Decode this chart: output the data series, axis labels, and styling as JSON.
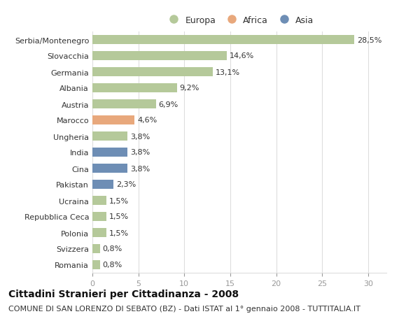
{
  "categories": [
    "Romania",
    "Svizzera",
    "Polonia",
    "Repubblica Ceca",
    "Ucraina",
    "Pakistan",
    "Cina",
    "India",
    "Ungheria",
    "Marocco",
    "Austria",
    "Albania",
    "Germania",
    "Slovacchia",
    "Serbia/Montenegro"
  ],
  "values": [
    0.8,
    0.8,
    1.5,
    1.5,
    1.5,
    2.3,
    3.8,
    3.8,
    3.8,
    4.6,
    6.9,
    9.2,
    13.1,
    14.6,
    28.5
  ],
  "labels": [
    "0,8%",
    "0,8%",
    "1,5%",
    "1,5%",
    "1,5%",
    "2,3%",
    "3,8%",
    "3,8%",
    "3,8%",
    "4,6%",
    "6,9%",
    "9,2%",
    "13,1%",
    "14,6%",
    "28,5%"
  ],
  "colors": [
    "#b5c99a",
    "#b5c99a",
    "#b5c99a",
    "#b5c99a",
    "#b5c99a",
    "#6e8eb5",
    "#6e8eb5",
    "#6e8eb5",
    "#b5c99a",
    "#e8a87c",
    "#b5c99a",
    "#b5c99a",
    "#b5c99a",
    "#b5c99a",
    "#b5c99a"
  ],
  "continent_colors": {
    "Europa": "#b5c99a",
    "Africa": "#e8a87c",
    "Asia": "#6e8eb5"
  },
  "xlim": [
    0,
    32
  ],
  "xticks": [
    0,
    5,
    10,
    15,
    20,
    25,
    30
  ],
  "title": "Cittadini Stranieri per Cittadinanza - 2008",
  "subtitle": "COMUNE DI SAN LORENZO DI SEBATO (BZ) - Dati ISTAT al 1° gennaio 2008 - TUTTITALIA.IT",
  "title_fontsize": 10,
  "subtitle_fontsize": 8,
  "bar_height": 0.55,
  "background_color": "#ffffff",
  "grid_color": "#dddddd",
  "text_color": "#333333",
  "label_fontsize": 8,
  "tick_label_fontsize": 8
}
